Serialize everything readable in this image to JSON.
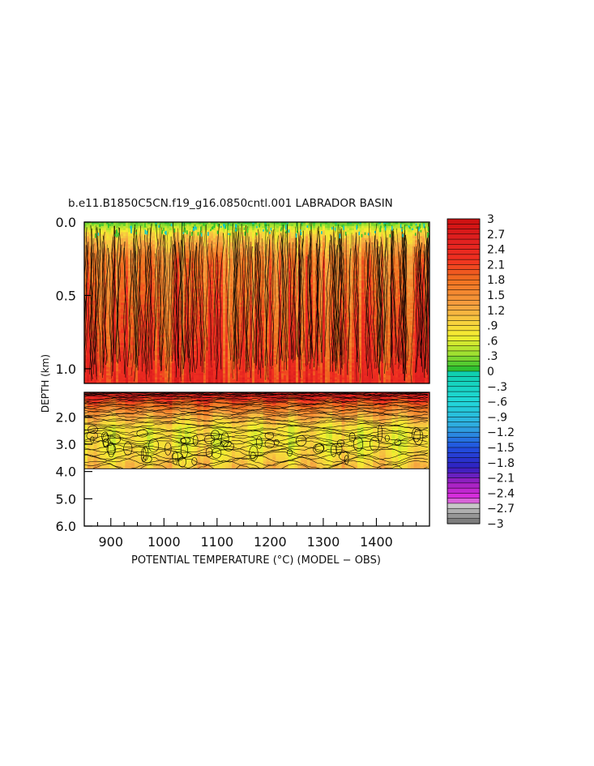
{
  "chart_data": {
    "type": "heatmap",
    "title": "b.e11.B1850C5CN.f19_g16.0850cntl.001 LABRADOR BASIN",
    "xlabel": "POTENTIAL TEMPERATURE (°C) (MODEL − OBS)",
    "ylabel": "DEPTH (km)",
    "xlim": [
      850,
      1500
    ],
    "x_ticks": [
      {
        "value": 900,
        "label": "900"
      },
      {
        "value": 1000,
        "label": "1000"
      },
      {
        "value": 1100,
        "label": "1100"
      },
      {
        "value": 1200,
        "label": "1200"
      },
      {
        "value": 1300,
        "label": "1300"
      },
      {
        "value": 1400,
        "label": "1400"
      }
    ],
    "upper_panel": {
      "ylim": [
        0.0,
        1.1
      ],
      "y_ticks": [
        {
          "value": 0.0,
          "label": "0.0"
        },
        {
          "value": 0.5,
          "label": "0.5"
        },
        {
          "value": 1.0,
          "label": "1.0"
        }
      ],
      "profile": [
        {
          "depth": 0.0,
          "value": 0.1
        },
        {
          "depth": 0.08,
          "value": 0.9
        },
        {
          "depth": 0.25,
          "value": 1.6
        },
        {
          "depth": 0.6,
          "value": 1.9
        },
        {
          "depth": 0.9,
          "value": 2.1
        },
        {
          "depth": 1.1,
          "value": 2.3
        }
      ]
    },
    "lower_panel": {
      "ylim": [
        1.1,
        6.0
      ],
      "y_ticks": [
        {
          "value": 2.0,
          "label": "2.0"
        },
        {
          "value": 3.0,
          "label": "3.0"
        },
        {
          "value": 4.0,
          "label": "4.0"
        },
        {
          "value": 5.0,
          "label": "5.0"
        },
        {
          "value": 6.0,
          "label": "6.0"
        }
      ],
      "data_bottom_depth": 3.9,
      "profile": [
        {
          "depth": 1.1,
          "value": 2.6
        },
        {
          "depth": 1.5,
          "value": 1.9
        },
        {
          "depth": 1.9,
          "value": 1.3
        },
        {
          "depth": 2.4,
          "value": 0.8
        },
        {
          "depth": 3.0,
          "value": 0.75
        },
        {
          "depth": 3.5,
          "value": 0.9
        },
        {
          "depth": 3.9,
          "value": 1.1
        }
      ]
    },
    "colorbar": {
      "min": -3,
      "max": 3,
      "labels": [
        "3",
        "2.7",
        "2.4",
        "2.1",
        "1.8",
        "1.5",
        "1.2",
        ".9",
        ".6",
        ".3",
        "0",
        "−.3",
        "−.6",
        "−.9",
        "−1.2",
        "−1.5",
        "−1.8",
        "−2.1",
        "−2.4",
        "−2.7",
        "−3"
      ],
      "stops": [
        {
          "value": 3.0,
          "color": "#cc1010"
        },
        {
          "value": 2.6,
          "color": "#e02020"
        },
        {
          "value": 2.2,
          "color": "#f03020"
        },
        {
          "value": 1.8,
          "color": "#f07020"
        },
        {
          "value": 1.3,
          "color": "#f5a040"
        },
        {
          "value": 1.0,
          "color": "#f7cc40"
        },
        {
          "value": 0.7,
          "color": "#f5ee30"
        },
        {
          "value": 0.35,
          "color": "#a0e030"
        },
        {
          "value": 0.05,
          "color": "#30c030"
        },
        {
          "value": -0.05,
          "color": "#10d0b0"
        },
        {
          "value": -0.6,
          "color": "#20d8d8"
        },
        {
          "value": -1.1,
          "color": "#30a8e0"
        },
        {
          "value": -1.5,
          "color": "#2050e0"
        },
        {
          "value": -1.9,
          "color": "#3020c0"
        },
        {
          "value": -2.2,
          "color": "#a020c0"
        },
        {
          "value": -2.5,
          "color": "#e030e0"
        },
        {
          "value": -2.65,
          "color": "#c8c8c8"
        },
        {
          "value": -3.0,
          "color": "#707070"
        }
      ]
    }
  }
}
